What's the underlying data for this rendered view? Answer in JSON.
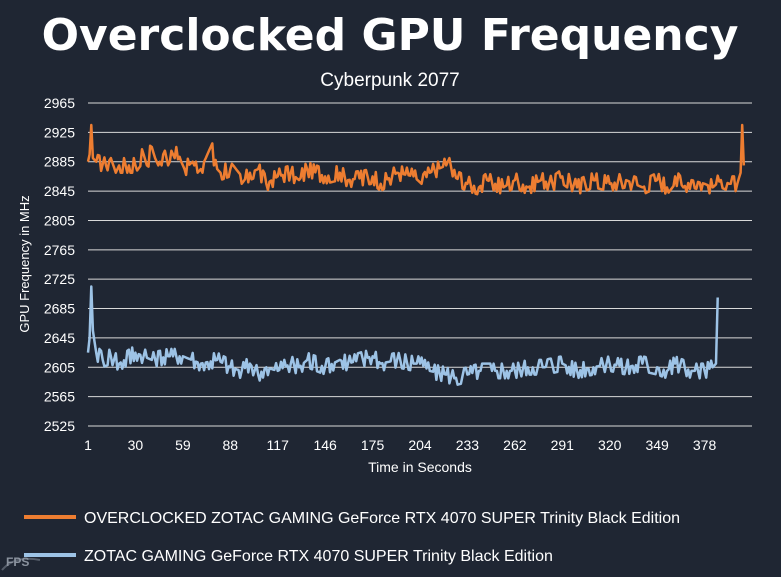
{
  "chart_data": {
    "type": "line",
    "title": "Overclocked GPU Frequency",
    "subtitle": "Cyberpunk 2077",
    "xlabel": "Time in Seconds",
    "ylabel": "GPU Frequency in MHz",
    "ylim": [
      2525,
      2965
    ],
    "yticks": [
      2525,
      2565,
      2605,
      2645,
      2685,
      2725,
      2765,
      2805,
      2845,
      2885,
      2925,
      2965
    ],
    "xlim": [
      1,
      407
    ],
    "xticks": [
      1,
      30,
      59,
      88,
      117,
      146,
      175,
      204,
      233,
      262,
      291,
      320,
      349,
      378
    ],
    "grid": true,
    "legend_position": "bottom",
    "series": [
      {
        "name": "OVERCLOCKED ZOTAC GAMING GeForce RTX 4070 SUPER Trinity Black Edition",
        "color": "#ed7d31",
        "points": [
          [
            1,
            2885
          ],
          [
            2,
            2895
          ],
          [
            3,
            2935
          ],
          [
            4,
            2890
          ],
          [
            6,
            2885
          ],
          [
            12,
            2880
          ],
          [
            15,
            2890
          ],
          [
            18,
            2870
          ],
          [
            20,
            2880
          ],
          [
            30,
            2880
          ],
          [
            35,
            2895
          ],
          [
            37,
            2880
          ],
          [
            40,
            2905
          ],
          [
            42,
            2890
          ],
          [
            44,
            2880
          ],
          [
            48,
            2900
          ],
          [
            50,
            2880
          ],
          [
            55,
            2905
          ],
          [
            58,
            2885
          ],
          [
            60,
            2875
          ],
          [
            65,
            2885
          ],
          [
            68,
            2870
          ],
          [
            70,
            2875
          ],
          [
            75,
            2900
          ],
          [
            77,
            2910
          ],
          [
            78,
            2880
          ],
          [
            82,
            2870
          ],
          [
            88,
            2875
          ],
          [
            95,
            2855
          ],
          [
            100,
            2870
          ],
          [
            105,
            2875
          ],
          [
            110,
            2855
          ],
          [
            117,
            2865
          ],
          [
            125,
            2870
          ],
          [
            130,
            2860
          ],
          [
            135,
            2875
          ],
          [
            146,
            2865
          ],
          [
            155,
            2870
          ],
          [
            160,
            2860
          ],
          [
            175,
            2865
          ],
          [
            180,
            2855
          ],
          [
            190,
            2870
          ],
          [
            200,
            2865
          ],
          [
            205,
            2855
          ],
          [
            210,
            2870
          ],
          [
            220,
            2880
          ],
          [
            222,
            2890
          ],
          [
            224,
            2865
          ],
          [
            233,
            2855
          ],
          [
            240,
            2850
          ],
          [
            245,
            2860
          ],
          [
            255,
            2850
          ],
          [
            262,
            2860
          ],
          [
            270,
            2850
          ],
          [
            278,
            2860
          ],
          [
            285,
            2855
          ],
          [
            291,
            2865
          ],
          [
            300,
            2850
          ],
          [
            310,
            2860
          ],
          [
            320,
            2855
          ],
          [
            330,
            2860
          ],
          [
            340,
            2850
          ],
          [
            349,
            2860
          ],
          [
            355,
            2850
          ],
          [
            360,
            2865
          ],
          [
            365,
            2850
          ],
          [
            370,
            2860
          ],
          [
            378,
            2855
          ],
          [
            383,
            2850
          ],
          [
            388,
            2860
          ],
          [
            393,
            2855
          ],
          [
            398,
            2855
          ],
          [
            400,
            2870
          ],
          [
            401,
            2935
          ],
          [
            402,
            2880
          ]
        ]
      },
      {
        "name": "ZOTAC GAMING GeForce RTX 4070 SUPER Trinity Black Edition",
        "color": "#9dc3e6",
        "points": [
          [
            1,
            2625
          ],
          [
            2,
            2645
          ],
          [
            3,
            2715
          ],
          [
            4,
            2655
          ],
          [
            6,
            2625
          ],
          [
            10,
            2615
          ],
          [
            15,
            2620
          ],
          [
            20,
            2610
          ],
          [
            30,
            2625
          ],
          [
            40,
            2615
          ],
          [
            50,
            2620
          ],
          [
            59,
            2620
          ],
          [
            70,
            2610
          ],
          [
            80,
            2615
          ],
          [
            88,
            2605
          ],
          [
            95,
            2600
          ],
          [
            100,
            2610
          ],
          [
            105,
            2595
          ],
          [
            110,
            2605
          ],
          [
            117,
            2600
          ],
          [
            125,
            2610
          ],
          [
            130,
            2605
          ],
          [
            135,
            2615
          ],
          [
            146,
            2605
          ],
          [
            155,
            2615
          ],
          [
            160,
            2610
          ],
          [
            175,
            2620
          ],
          [
            180,
            2610
          ],
          [
            190,
            2615
          ],
          [
            200,
            2610
          ],
          [
            204,
            2610
          ],
          [
            210,
            2600
          ],
          [
            220,
            2595
          ],
          [
            225,
            2590
          ],
          [
            233,
            2595
          ],
          [
            240,
            2600
          ],
          [
            250,
            2600
          ],
          [
            262,
            2600
          ],
          [
            270,
            2605
          ],
          [
            280,
            2605
          ],
          [
            291,
            2610
          ],
          [
            300,
            2600
          ],
          [
            310,
            2605
          ],
          [
            320,
            2610
          ],
          [
            330,
            2605
          ],
          [
            340,
            2610
          ],
          [
            349,
            2605
          ],
          [
            355,
            2600
          ],
          [
            360,
            2610
          ],
          [
            370,
            2600
          ],
          [
            378,
            2600
          ],
          [
            383,
            2605
          ],
          [
            385,
            2610
          ],
          [
            386,
            2700
          ]
        ]
      }
    ]
  },
  "watermark": {
    "text": "FPS"
  }
}
